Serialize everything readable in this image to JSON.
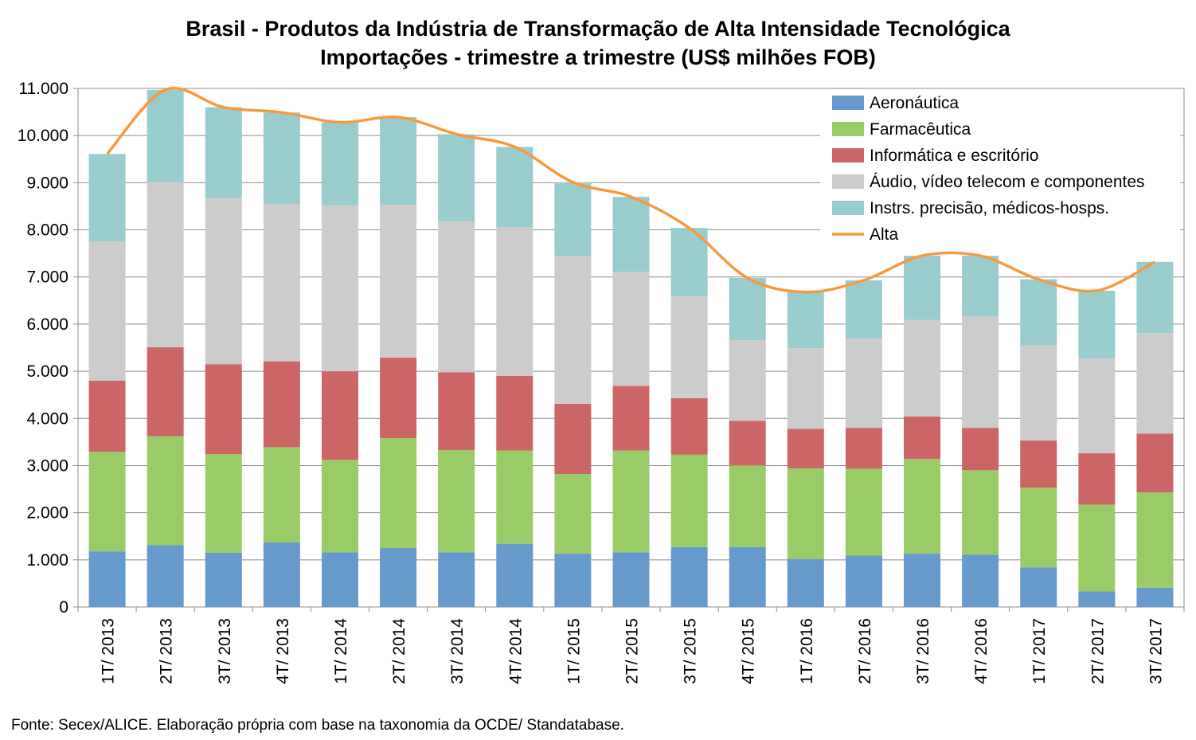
{
  "chart_data": {
    "type": "bar",
    "stacked": true,
    "title": "Brasil - Produtos da Indústria de Transformação de Alta Intensidade Tecnológica",
    "subtitle": "Importações - trimestre a trimestre (US$ milhões FOB)",
    "ylim": [
      0,
      11000
    ],
    "yticks": [
      "0",
      "1.000",
      "2.000",
      "3.000",
      "4.000",
      "5.000",
      "6.000",
      "7.000",
      "8.000",
      "9.000",
      "10.000",
      "11.000"
    ],
    "grid": true,
    "legend_position": "top-right",
    "categories": [
      "1T/ 2013",
      "2T/ 2013",
      "3T/ 2013",
      "4T/ 2013",
      "1T/ 2014",
      "2T/ 2014",
      "3T/ 2014",
      "4T/ 2014",
      "1T/ 2015",
      "2T/ 2015",
      "3T/ 2015",
      "4T/ 2015",
      "1T/ 2016",
      "2T/ 2016",
      "3T/ 2016",
      "4T/ 2016",
      "1T/ 2017",
      "2T/ 2017",
      "3T/ 2017"
    ],
    "series": [
      {
        "name": "Aeronáutica",
        "color": "#6699cc",
        "values": [
          1180,
          1310,
          1150,
          1370,
          1160,
          1250,
          1160,
          1340,
          1130,
          1160,
          1270,
          1270,
          1020,
          1090,
          1130,
          1110,
          840,
          330,
          410
        ]
      },
      {
        "name": "Farmacêutica",
        "color": "#99cc66",
        "values": [
          2110,
          2310,
          2090,
          2020,
          1960,
          2330,
          2170,
          1980,
          1690,
          2160,
          1960,
          1730,
          1920,
          1840,
          2010,
          1790,
          1690,
          1840,
          2020
        ]
      },
      {
        "name": "Informática e escritório",
        "color": "#cc6666",
        "values": [
          1510,
          1890,
          1910,
          1820,
          1880,
          1710,
          1650,
          1580,
          1490,
          1370,
          1200,
          950,
          840,
          870,
          900,
          900,
          1000,
          1090,
          1250
        ]
      },
      {
        "name": "Áudio, vídeo telecom e componentes",
        "color": "#cccccc",
        "values": [
          2950,
          3500,
          3520,
          3340,
          3520,
          3240,
          3200,
          3160,
          3140,
          2420,
          2160,
          1710,
          1710,
          1890,
          2050,
          2360,
          2020,
          2010,
          2130
        ]
      },
      {
        "name": "Instrs. precisão, médicos-hosps.",
        "color": "#99cccc",
        "values": [
          1860,
          1960,
          1930,
          1940,
          1760,
          1860,
          1850,
          1700,
          1560,
          1590,
          1450,
          1320,
          1190,
          1240,
          1360,
          1290,
          1400,
          1440,
          1510
        ]
      }
    ],
    "line_series": {
      "name": "Alta",
      "color": "#f79a3e",
      "values": [
        9610,
        10970,
        10600,
        10490,
        10280,
        10390,
        10030,
        9760,
        9010,
        8700,
        8040,
        6980,
        6680,
        6930,
        7450,
        7450,
        6950,
        6710,
        7320
      ]
    }
  },
  "source_note": "Fonte: Secex/ALICE. Elaboração própria com base na taxonomia da OCDE/ Standatabase."
}
